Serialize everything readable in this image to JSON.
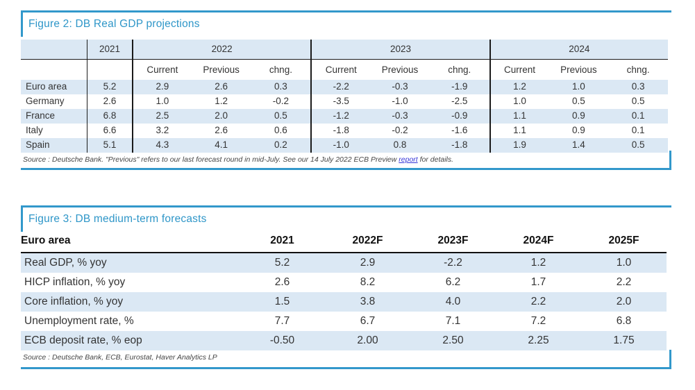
{
  "colors": {
    "accent_blue": "#3298cb",
    "title_blue": "#2e96c8",
    "row_alt_bg": "#dbe8f4",
    "rule_black": "#1a1a1a",
    "link_blue": "#3636d8"
  },
  "figure2": {
    "title": "Figure 2: DB Real GDP projections",
    "year_single": "2021",
    "year_groups": [
      "2022",
      "2023",
      "2024"
    ],
    "sub_headers": [
      "Current",
      "Previous",
      "chng."
    ],
    "rows": [
      {
        "label": "Euro area",
        "y2021": "5.2",
        "cells": [
          "2.9",
          "2.6",
          "0.3",
          "-2.2",
          "-0.3",
          "-1.9",
          "1.2",
          "1.0",
          "0.3"
        ]
      },
      {
        "label": "Germany",
        "y2021": "2.6",
        "cells": [
          "1.0",
          "1.2",
          "-0.2",
          "-3.5",
          "-1.0",
          "-2.5",
          "1.0",
          "0.5",
          "0.5"
        ]
      },
      {
        "label": "France",
        "y2021": "6.8",
        "cells": [
          "2.5",
          "2.0",
          "0.5",
          "-1.2",
          "-0.3",
          "-0.9",
          "1.1",
          "0.9",
          "0.1"
        ]
      },
      {
        "label": "Italy",
        "y2021": "6.6",
        "cells": [
          "3.2",
          "2.6",
          "0.6",
          "-1.8",
          "-0.2",
          "-1.6",
          "1.1",
          "0.9",
          "0.1"
        ]
      },
      {
        "label": "Spain",
        "y2021": "5.1",
        "cells": [
          "4.3",
          "4.1",
          "0.2",
          "-1.0",
          "0.8",
          "-1.8",
          "1.9",
          "1.4",
          "0.5"
        ]
      }
    ],
    "source_prefix": "Source : Deutsche Bank. \"Previous\" refers to our last forecast round in mid-July. See our 14 July 2022 ECB Preview ",
    "source_link": "report",
    "source_suffix": " for details."
  },
  "figure3": {
    "title": "Figure 3: DB medium-term forecasts",
    "header_label": "Euro area",
    "years": [
      "2021",
      "2022F",
      "2023F",
      "2024F",
      "2025F"
    ],
    "rows": [
      {
        "label": "Real GDP, % yoy",
        "values": [
          "5.2",
          "2.9",
          "-2.2",
          "1.2",
          "1.0"
        ]
      },
      {
        "label": "HICP inflation, % yoy",
        "values": [
          "2.6",
          "8.2",
          "6.2",
          "1.7",
          "2.2"
        ]
      },
      {
        "label": "Core inflation, % yoy",
        "values": [
          "1.5",
          "3.8",
          "4.0",
          "2.2",
          "2.0"
        ]
      },
      {
        "label": "Unemployment rate, %",
        "values": [
          "7.7",
          "6.7",
          "7.1",
          "7.2",
          "6.8"
        ]
      },
      {
        "label": "ECB deposit rate, % eop",
        "values": [
          "-0.50",
          "2.00",
          "2.50",
          "2.25",
          "1.75"
        ]
      }
    ],
    "source": "Source : Deutsche Bank, ECB, Eurostat, Haver Analytics LP"
  },
  "chart_data": [
    {
      "type": "table",
      "title": "Figure 2: DB Real GDP projections",
      "column_groups": [
        {
          "label": "2021",
          "span": 1
        },
        {
          "label": "2022",
          "span": 3
        },
        {
          "label": "2023",
          "span": 3
        },
        {
          "label": "2024",
          "span": 3
        }
      ],
      "columns": [
        "2021",
        "2022 Current",
        "2022 Previous",
        "2022 chng.",
        "2023 Current",
        "2023 Previous",
        "2023 chng.",
        "2024 Current",
        "2024 Previous",
        "2024 chng."
      ],
      "rows": [
        {
          "label": "Euro area",
          "values": [
            5.2,
            2.9,
            2.6,
            0.3,
            -2.2,
            -0.3,
            -1.9,
            1.2,
            1.0,
            0.3
          ]
        },
        {
          "label": "Germany",
          "values": [
            2.6,
            1.0,
            1.2,
            -0.2,
            -3.5,
            -1.0,
            -2.5,
            1.0,
            0.5,
            0.5
          ]
        },
        {
          "label": "France",
          "values": [
            6.8,
            2.5,
            2.0,
            0.5,
            -1.2,
            -0.3,
            -0.9,
            1.1,
            0.9,
            0.1
          ]
        },
        {
          "label": "Italy",
          "values": [
            6.6,
            3.2,
            2.6,
            0.6,
            -1.8,
            -0.2,
            -1.6,
            1.1,
            0.9,
            0.1
          ]
        },
        {
          "label": "Spain",
          "values": [
            5.1,
            4.3,
            4.1,
            0.2,
            -1.0,
            0.8,
            -1.8,
            1.9,
            1.4,
            0.5
          ]
        }
      ],
      "source": "Source : Deutsche Bank. \"Previous\" refers to our last forecast round in mid-July. See our 14 July 2022 ECB Preview report for details."
    },
    {
      "type": "table",
      "title": "Figure 3: DB medium-term forecasts",
      "columns": [
        "Euro area",
        "2021",
        "2022F",
        "2023F",
        "2024F",
        "2025F"
      ],
      "rows": [
        {
          "label": "Real GDP, % yoy",
          "values": [
            5.2,
            2.9,
            -2.2,
            1.2,
            1.0
          ]
        },
        {
          "label": "HICP inflation, % yoy",
          "values": [
            2.6,
            8.2,
            6.2,
            1.7,
            2.2
          ]
        },
        {
          "label": "Core inflation, % yoy",
          "values": [
            1.5,
            3.8,
            4.0,
            2.2,
            2.0
          ]
        },
        {
          "label": "Unemployment rate, %",
          "values": [
            7.7,
            6.7,
            7.1,
            7.2,
            6.8
          ]
        },
        {
          "label": "ECB deposit rate, % eop",
          "values": [
            -0.5,
            2.0,
            2.5,
            2.25,
            1.75
          ]
        }
      ],
      "source": "Source : Deutsche Bank, ECB, Eurostat, Haver Analytics LP"
    }
  ]
}
